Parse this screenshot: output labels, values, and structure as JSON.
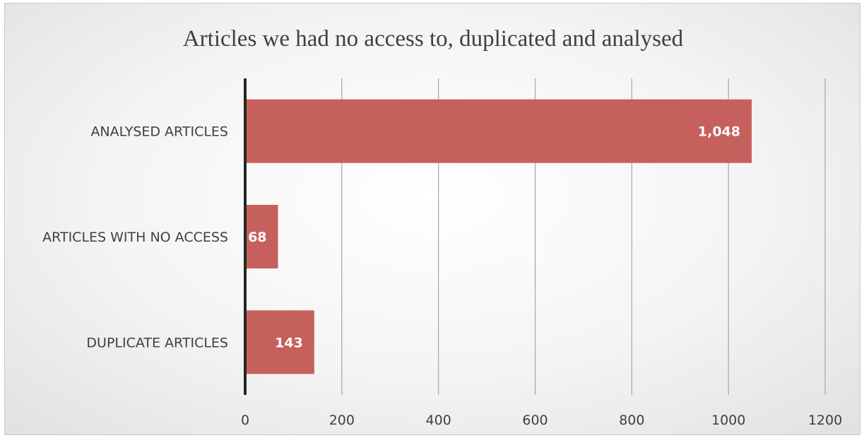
{
  "chart_data": {
    "type": "bar",
    "orientation": "horizontal",
    "title": "Articles we had no access to, duplicated and analysed",
    "categories": [
      "ANALYSED ARTICLES",
      "ARTICLES WITH NO ACCESS",
      "DUPLICATE ARTICLES"
    ],
    "values": [
      1048,
      68,
      143
    ],
    "data_labels": [
      "1,048",
      "68",
      "143"
    ],
    "xlim": [
      0,
      1200
    ],
    "x_ticks": [
      0,
      200,
      400,
      600,
      800,
      1000,
      1200
    ],
    "grid": true,
    "legend": "none",
    "bar_color": "#c6605c"
  }
}
